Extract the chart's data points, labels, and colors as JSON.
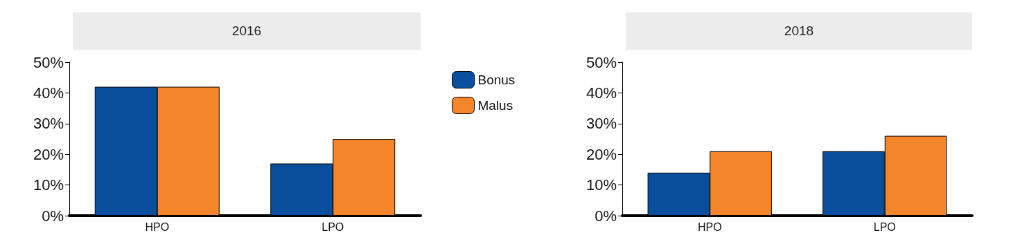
{
  "chart_data": [
    {
      "type": "bar",
      "title": "2016",
      "categories": [
        "HPO",
        "LPO"
      ],
      "legend": "right",
      "series": [
        {
          "name": "Bonus",
          "color": "#0a4f9e",
          "values": [
            42,
            17
          ]
        },
        {
          "name": "Malus",
          "color": "#f5852a",
          "values": [
            42,
            25
          ]
        }
      ],
      "ylim": [
        0,
        50
      ],
      "yticks": [
        {
          "value": 0,
          "label": "0%"
        },
        {
          "value": 10,
          "label": "10%"
        },
        {
          "value": 20,
          "label": "20%"
        },
        {
          "value": 30,
          "label": "30%"
        },
        {
          "value": 40,
          "label": "40%"
        },
        {
          "value": 50,
          "label": "50%"
        }
      ],
      "grid": false
    },
    {
      "type": "bar",
      "title": "2018",
      "categories": [
        "HPO",
        "LPO"
      ],
      "series": [
        {
          "color": "#0a4f9e",
          "values": [
            14,
            21
          ]
        },
        {
          "color": "#f5852a",
          "values": [
            21,
            26
          ]
        }
      ],
      "ylim": [
        0,
        50
      ],
      "yticks": [
        {
          "value": 0,
          "label": "0%"
        },
        {
          "value": 10,
          "label": "10%"
        },
        {
          "value": 20,
          "label": "20%"
        },
        {
          "value": 30,
          "label": "30%"
        },
        {
          "value": 40,
          "label": "40%"
        },
        {
          "value": 50,
          "label": "50%"
        }
      ],
      "grid": false
    }
  ]
}
